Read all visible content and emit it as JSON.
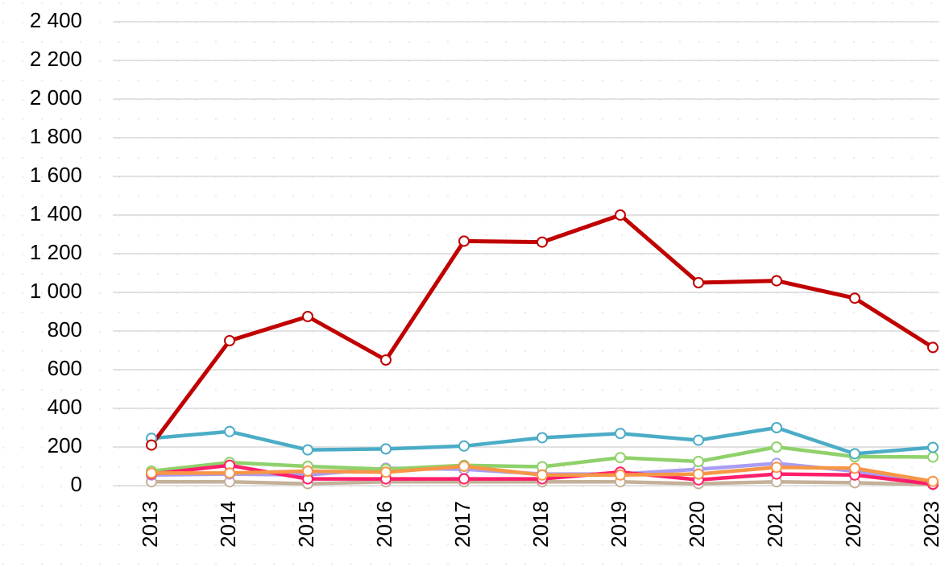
{
  "chart_data": {
    "type": "line",
    "categories": [
      "2013",
      "2014",
      "2015",
      "2016",
      "2017",
      "2018",
      "2019",
      "2020",
      "2021",
      "2022",
      "2023"
    ],
    "series": [
      {
        "color": "#c4b19a",
        "values": [
          20,
          20,
          10,
          20,
          20,
          20,
          20,
          10,
          20,
          15,
          5
        ]
      },
      {
        "color": "#a99cf5",
        "values": [
          55,
          60,
          55,
          90,
          85,
          60,
          60,
          85,
          115,
          75,
          15
        ]
      },
      {
        "color": "#8fd16b",
        "values": [
          75,
          120,
          100,
          85,
          105,
          98,
          145,
          125,
          200,
          150,
          148
        ]
      },
      {
        "color": "#ff1f6b",
        "values": [
          60,
          105,
          35,
          35,
          35,
          35,
          70,
          30,
          60,
          55,
          8
        ]
      },
      {
        "color": "#f79646",
        "values": [
          65,
          65,
          75,
          70,
          100,
          55,
          55,
          60,
          95,
          90,
          22
        ]
      },
      {
        "color": "#4bacc6",
        "values": [
          245,
          280,
          185,
          190,
          205,
          248,
          270,
          235,
          300,
          165,
          198
        ]
      },
      {
        "color": "#c00000",
        "values": [
          210,
          750,
          875,
          650,
          1265,
          1260,
          1400,
          1050,
          1060,
          970,
          715
        ]
      }
    ],
    "ylim": [
      0,
      2400
    ],
    "yticks": [
      0,
      200,
      400,
      600,
      800,
      {
        "value": 1000,
        "label": "1 000"
      },
      {
        "value": 1200,
        "label": "1 200"
      },
      {
        "value": 1400,
        "label": "1 400"
      },
      {
        "value": 1600,
        "label": "1 600"
      },
      {
        "value": 1800,
        "label": "1 800"
      },
      {
        "value": 2000,
        "label": "2 000"
      },
      {
        "value": 2200,
        "label": "2 200"
      },
      {
        "value": 2400,
        "label": "2 400"
      }
    ],
    "grid": true
  }
}
